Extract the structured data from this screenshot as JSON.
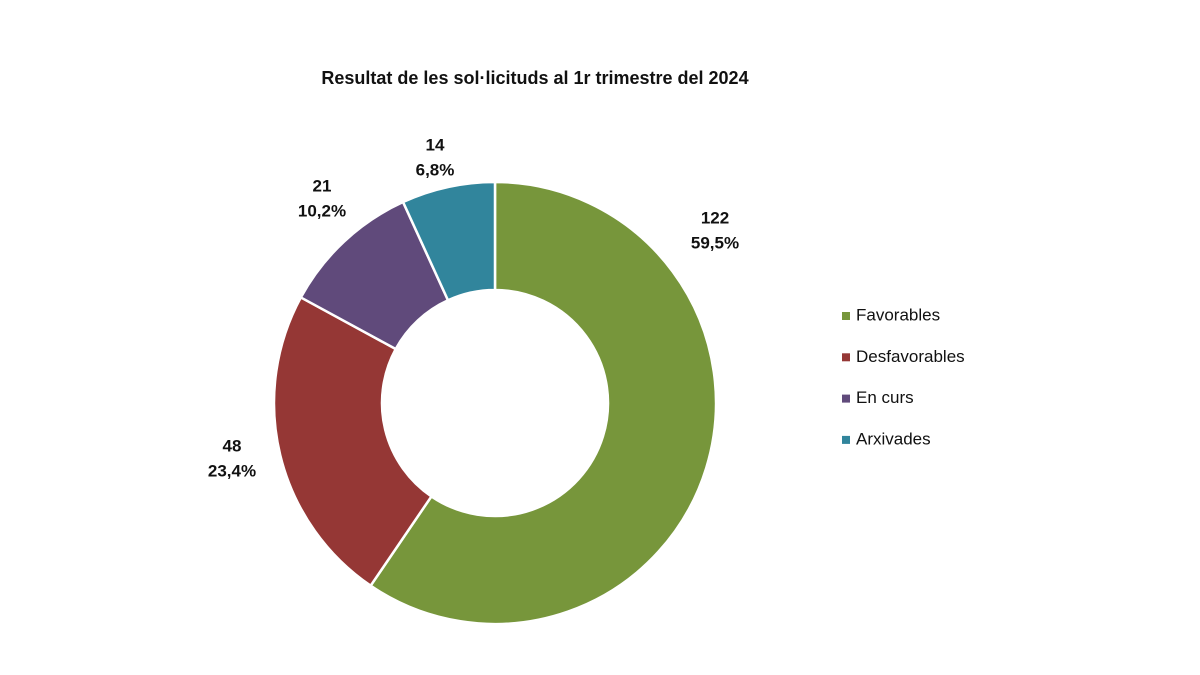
{
  "chart_data": {
    "type": "donut",
    "title": "Resultat de les sol·licituds al 1r trimestre del 2024",
    "categories": [
      "Favorables",
      "Desfavorables",
      "En curs",
      "Arxivades"
    ],
    "values": [
      122,
      48,
      21,
      14
    ],
    "percent_labels": [
      "59,5%",
      "23,4%",
      "10,2%",
      "6,8%"
    ],
    "colors": [
      "#77963b",
      "#953735",
      "#604a7b",
      "#31859c"
    ],
    "legend": "right"
  }
}
